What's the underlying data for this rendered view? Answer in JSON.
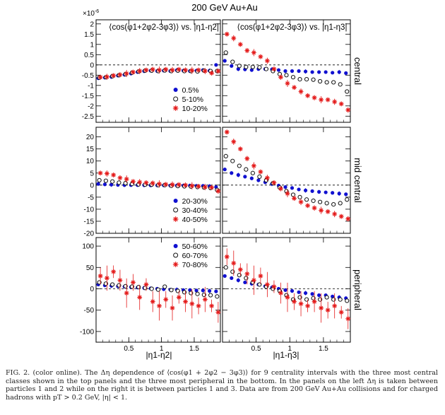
{
  "figure": {
    "title": "200 GeV Au+Au",
    "exponent_label": "×10",
    "exponent_power": "-6",
    "left_title": "⟨cos(φ1+2φ2-3φ3)⟩ vs. |η1-η2|",
    "right_title": "⟨cos(φ1+2φ2-3φ3)⟩ vs. |η1-η3|",
    "xlabel_left": "|η1-η2|",
    "xlabel_right": "|η1-η3|",
    "row_labels": [
      "central",
      "mid central",
      "peripheral"
    ],
    "x_ticks": [
      "0.5",
      "1",
      "1.5"
    ]
  },
  "caption": {
    "label": "FIG. 2.",
    "text": "(color online). The Δη dependence of ⟨cos(φ1 + 2φ2 − 3φ3)⟩ for 9 centrality intervals with the three most central classes shown in the top panels and the three most peripheral in the bottom. In the panels on the left Δη is taken between particles 1 and 2 while on the right it is between particles 1 and 3. Data are from 200 GeV Au+Au collisions and for charged hadrons with pT > 0.2 GeV, |η| < 1."
  },
  "colors": {
    "blue": "#1010d0",
    "black": "#111111",
    "red": "#e41a1a"
  },
  "chart_data": [
    {
      "type": "scatter",
      "row": "central",
      "column": "left",
      "xlim": [
        0,
        1.9
      ],
      "ylim": [
        -2.8,
        2.2
      ],
      "yticks": [
        "-2.5",
        "-2",
        "-1.5",
        "-1",
        "-0.5",
        "0",
        "0.5",
        "1",
        "1.5",
        "2"
      ],
      "yticks_values": [
        -2.5,
        -2,
        -1.5,
        -1,
        -0.5,
        0,
        0.5,
        1,
        1.5,
        2
      ],
      "legend_position": "bottom-right",
      "series": [
        {
          "name": "0.5%",
          "marker": "filled-circle",
          "x": [
            0.05,
            0.15,
            0.25,
            0.35,
            0.45,
            0.55,
            0.65,
            0.75,
            0.85,
            0.95,
            1.05,
            1.15,
            1.25,
            1.35,
            1.45,
            1.55,
            1.65,
            1.75,
            1.85
          ],
          "y": [
            -0.65,
            -0.62,
            -0.58,
            -0.52,
            -0.48,
            -0.42,
            -0.35,
            -0.3,
            -0.28,
            -0.3,
            -0.28,
            -0.3,
            -0.26,
            -0.28,
            -0.3,
            -0.28,
            -0.25,
            -0.28,
            0.0
          ]
        },
        {
          "name": "5-10%",
          "marker": "open-circle",
          "x": [
            0.05,
            0.15,
            0.25,
            0.35,
            0.45,
            0.55,
            0.65,
            0.75,
            0.85,
            0.95,
            1.05,
            1.15,
            1.25,
            1.35,
            1.45,
            1.55,
            1.65,
            1.75,
            1.85
          ],
          "y": [
            -0.62,
            -0.6,
            -0.55,
            -0.5,
            -0.45,
            -0.38,
            -0.32,
            -0.28,
            -0.28,
            -0.3,
            -0.27,
            -0.3,
            -0.28,
            -0.3,
            -0.3,
            -0.32,
            -0.28,
            -0.3,
            -0.3
          ]
        },
        {
          "name": "10-20%",
          "marker": "star",
          "x": [
            0.05,
            0.15,
            0.25,
            0.35,
            0.45,
            0.55,
            0.65,
            0.75,
            0.85,
            0.95,
            1.05,
            1.15,
            1.25,
            1.35,
            1.45,
            1.55,
            1.65,
            1.75,
            1.85
          ],
          "y": [
            -0.6,
            -0.58,
            -0.52,
            -0.48,
            -0.42,
            -0.35,
            -0.3,
            -0.25,
            -0.22,
            -0.25,
            -0.22,
            -0.25,
            -0.22,
            -0.25,
            -0.27,
            -0.25,
            -0.3,
            -0.4,
            -0.3
          ]
        }
      ]
    },
    {
      "type": "scatter",
      "row": "central",
      "column": "right",
      "xlim": [
        0,
        1.9
      ],
      "ylim": [
        -2.8,
        2.2
      ],
      "series": [
        {
          "name": "0.5%",
          "marker": "filled-circle",
          "x": [
            0.05,
            0.15,
            0.25,
            0.35,
            0.45,
            0.55,
            0.65,
            0.75,
            0.85,
            0.95,
            1.05,
            1.15,
            1.25,
            1.35,
            1.45,
            1.55,
            1.65,
            1.75,
            1.85
          ],
          "y": [
            0.2,
            -0.05,
            -0.2,
            -0.22,
            -0.25,
            -0.2,
            -0.2,
            -0.22,
            -0.25,
            -0.3,
            -0.3,
            -0.3,
            -0.32,
            -0.35,
            -0.35,
            -0.35,
            -0.38,
            -0.35,
            -0.4
          ]
        },
        {
          "name": "5-10%",
          "marker": "open-circle",
          "x": [
            0.05,
            0.15,
            0.25,
            0.35,
            0.45,
            0.55,
            0.65,
            0.75,
            0.85,
            0.95,
            1.05,
            1.15,
            1.25,
            1.35,
            1.45,
            1.55,
            1.65,
            1.75,
            1.85
          ],
          "y": [
            0.6,
            0.15,
            -0.05,
            -0.1,
            -0.1,
            -0.12,
            -0.2,
            -0.3,
            -0.45,
            -0.5,
            -0.6,
            -0.7,
            -0.7,
            -0.72,
            -0.8,
            -0.85,
            -0.85,
            -0.95,
            -1.3
          ]
        },
        {
          "name": "10-20%",
          "marker": "star",
          "x": [
            0.05,
            0.15,
            0.25,
            0.35,
            0.45,
            0.55,
            0.65,
            0.75,
            0.85,
            0.95,
            1.05,
            1.15,
            1.25,
            1.35,
            1.45,
            1.55,
            1.65,
            1.75,
            1.85
          ],
          "y": [
            1.5,
            1.3,
            1.0,
            0.7,
            0.6,
            0.4,
            0.2,
            -0.2,
            -0.6,
            -0.9,
            -1.1,
            -1.3,
            -1.5,
            -1.6,
            -1.7,
            -1.7,
            -1.8,
            -1.9,
            -2.2
          ]
        }
      ]
    },
    {
      "type": "scatter",
      "row": "mid central",
      "column": "left",
      "xlim": [
        0,
        1.9
      ],
      "ylim": [
        -20,
        24
      ],
      "yticks": [
        "-20",
        "-15",
        "-10",
        "-5",
        "0",
        "5",
        "10",
        "15",
        "20"
      ],
      "yticks_values": [
        -20,
        -15,
        -10,
        -5,
        0,
        5,
        10,
        15,
        20
      ],
      "legend_position": "bottom-right",
      "series": [
        {
          "name": "20-30%",
          "marker": "filled-circle",
          "x": [
            0.05,
            0.15,
            0.25,
            0.35,
            0.45,
            0.55,
            0.65,
            0.75,
            0.85,
            0.95,
            1.05,
            1.15,
            1.25,
            1.35,
            1.45,
            1.55,
            1.65,
            1.75,
            1.85
          ],
          "y": [
            0.5,
            0.3,
            0.2,
            0.1,
            0,
            0,
            0,
            0,
            -0.1,
            -0.1,
            -0.1,
            -0.2,
            -0.2,
            -0.2,
            -0.2,
            -0.3,
            -0.3,
            -0.5,
            -0.8
          ]
        },
        {
          "name": "30-40%",
          "marker": "open-circle",
          "x": [
            0.05,
            0.15,
            0.25,
            0.35,
            0.45,
            0.55,
            0.65,
            0.75,
            0.85,
            0.95,
            1.05,
            1.15,
            1.25,
            1.35,
            1.45,
            1.55,
            1.65,
            1.75,
            1.85
          ],
          "y": [
            2.0,
            1.8,
            1.5,
            1.0,
            0.8,
            0.5,
            0.3,
            0.2,
            0.2,
            0,
            0,
            -0.3,
            -0.4,
            -0.5,
            -0.6,
            -0.8,
            -1.0,
            -1.2,
            -2.0
          ]
        },
        {
          "name": "40-50%",
          "marker": "star",
          "x": [
            0.05,
            0.15,
            0.25,
            0.35,
            0.45,
            0.55,
            0.65,
            0.75,
            0.85,
            0.95,
            1.05,
            1.15,
            1.25,
            1.35,
            1.45,
            1.55,
            1.65,
            1.75,
            1.85
          ],
          "y": [
            5.0,
            4.8,
            4.2,
            3.0,
            2.5,
            1.5,
            1.2,
            1.0,
            0.8,
            0.5,
            0.3,
            0.2,
            0.2,
            0,
            -0.3,
            -0.5,
            -0.8,
            -1.0,
            -2.5
          ]
        }
      ]
    },
    {
      "type": "scatter",
      "row": "mid central",
      "column": "right",
      "xlim": [
        0,
        1.9
      ],
      "ylim": [
        -20,
        24
      ],
      "series": [
        {
          "name": "20-30%",
          "marker": "filled-circle",
          "x": [
            0.05,
            0.15,
            0.25,
            0.35,
            0.45,
            0.55,
            0.65,
            0.75,
            0.85,
            0.95,
            1.05,
            1.15,
            1.25,
            1.35,
            1.45,
            1.55,
            1.65,
            1.75,
            1.85
          ],
          "y": [
            6.5,
            5.0,
            4.2,
            3.5,
            2.8,
            2.0,
            1.2,
            0.5,
            -0.2,
            -0.8,
            -1.2,
            -1.8,
            -2.2,
            -2.5,
            -2.8,
            -3.0,
            -3.2,
            -3.5,
            -3.8
          ]
        },
        {
          "name": "30-40%",
          "marker": "open-circle",
          "x": [
            0.05,
            0.15,
            0.25,
            0.35,
            0.45,
            0.55,
            0.65,
            0.75,
            0.85,
            0.95,
            1.05,
            1.15,
            1.25,
            1.35,
            1.45,
            1.55,
            1.65,
            1.75,
            1.85
          ],
          "y": [
            12,
            10,
            8,
            6.5,
            5,
            3.5,
            2,
            0.8,
            -1,
            -2.5,
            -4,
            -5,
            -6,
            -6.5,
            -7,
            -7.5,
            -8,
            -7.5,
            -6
          ]
        },
        {
          "name": "40-50%",
          "marker": "star",
          "x": [
            0.05,
            0.15,
            0.25,
            0.35,
            0.45,
            0.55,
            0.65,
            0.75,
            0.85,
            0.95,
            1.05,
            1.15,
            1.25,
            1.35,
            1.45,
            1.55,
            1.65,
            1.75,
            1.85
          ],
          "y": [
            22,
            18,
            15,
            11,
            8,
            5.5,
            3,
            1,
            -1.5,
            -3.5,
            -5.5,
            -7,
            -8.5,
            -9.5,
            -10.5,
            -11,
            -12,
            -13,
            -14
          ]
        }
      ]
    },
    {
      "type": "scatter",
      "row": "peripheral",
      "column": "left",
      "xlim": [
        0,
        1.9
      ],
      "ylim": [
        -125,
        120
      ],
      "yticks": [
        "-100",
        "-50",
        "0",
        "50",
        "100"
      ],
      "yticks_values": [
        -100,
        -50,
        0,
        50,
        100
      ],
      "legend_position": "top-right",
      "series": [
        {
          "name": "50-60%",
          "marker": "filled-circle",
          "x": [
            0.05,
            0.15,
            0.25,
            0.35,
            0.45,
            0.55,
            0.65,
            0.75,
            0.85,
            0.95,
            1.05,
            1.15,
            1.25,
            1.35,
            1.45,
            1.55,
            1.65,
            1.75,
            1.85
          ],
          "y": [
            10,
            8,
            7,
            6,
            5,
            4,
            3,
            2,
            1,
            0,
            -1,
            -2,
            -2,
            -3,
            -3,
            -4,
            -4,
            -5,
            -6
          ]
        },
        {
          "name": "60-70%",
          "marker": "open-circle",
          "x": [
            0.05,
            0.15,
            0.25,
            0.35,
            0.45,
            0.55,
            0.65,
            0.75,
            0.85,
            0.95,
            1.05,
            1.15,
            1.25,
            1.35,
            1.45,
            1.55,
            1.65,
            1.75,
            1.85
          ],
          "y": [
            15,
            12,
            10,
            8,
            6,
            5,
            4,
            2,
            0,
            -2,
            5,
            -3,
            -5,
            -8,
            -10,
            -12,
            -14,
            -15,
            -18
          ]
        },
        {
          "name": "70-80%",
          "marker": "star",
          "x": [
            0.05,
            0.15,
            0.25,
            0.35,
            0.45,
            0.55,
            0.65,
            0.75,
            0.85,
            0.95,
            1.05,
            1.15,
            1.25,
            1.35,
            1.45,
            1.55,
            1.65,
            1.75,
            1.85
          ],
          "y": [
            30,
            25,
            40,
            20,
            -10,
            15,
            -20,
            10,
            -30,
            -40,
            -25,
            -45,
            -20,
            -30,
            -35,
            -40,
            -25,
            -40,
            -55
          ]
        }
      ]
    },
    {
      "type": "scatter",
      "row": "peripheral",
      "column": "right",
      "xlim": [
        0,
        1.9
      ],
      "ylim": [
        -125,
        120
      ],
      "series": [
        {
          "name": "50-60%",
          "marker": "filled-circle",
          "x": [
            0.05,
            0.15,
            0.25,
            0.35,
            0.45,
            0.55,
            0.65,
            0.75,
            0.85,
            0.95,
            1.05,
            1.15,
            1.25,
            1.35,
            1.45,
            1.55,
            1.65,
            1.75,
            1.85
          ],
          "y": [
            30,
            25,
            20,
            15,
            12,
            10,
            6,
            3,
            0,
            -3,
            -5,
            -8,
            -10,
            -12,
            -15,
            -15,
            -18,
            -20,
            -22
          ]
        },
        {
          "name": "60-70%",
          "marker": "open-circle",
          "x": [
            0.05,
            0.15,
            0.25,
            0.35,
            0.45,
            0.55,
            0.65,
            0.75,
            0.85,
            0.95,
            1.05,
            1.15,
            1.25,
            1.35,
            1.45,
            1.55,
            1.65,
            1.75,
            1.85
          ],
          "y": [
            50,
            40,
            32,
            25,
            15,
            10,
            5,
            0,
            -5,
            -15,
            -25,
            -20,
            -25,
            -22,
            -25,
            -20,
            -25,
            -25,
            -28
          ]
        },
        {
          "name": "70-80%",
          "marker": "star",
          "x": [
            0.05,
            0.15,
            0.25,
            0.35,
            0.45,
            0.55,
            0.65,
            0.75,
            0.85,
            0.95,
            1.05,
            1.15,
            1.25,
            1.35,
            1.45,
            1.55,
            1.65,
            1.75,
            1.85
          ],
          "y": [
            75,
            60,
            45,
            35,
            20,
            30,
            10,
            5,
            -10,
            -20,
            -30,
            -35,
            -40,
            -30,
            -45,
            -50,
            -40,
            -55,
            -70
          ]
        }
      ]
    }
  ]
}
